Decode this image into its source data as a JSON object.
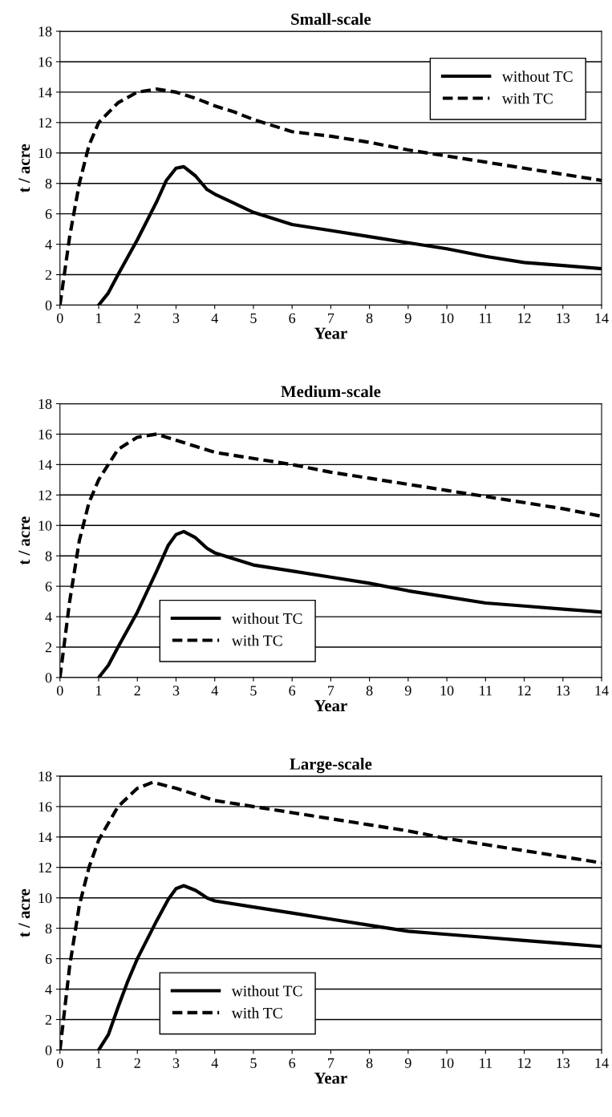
{
  "chart_data": [
    {
      "type": "line",
      "title": "Small-scale",
      "xlabel": "Year",
      "ylabel": "t / acre",
      "xlim": [
        0,
        14
      ],
      "ylim": [
        0,
        18
      ],
      "xticks": [
        0,
        1,
        2,
        3,
        4,
        5,
        6,
        7,
        8,
        9,
        10,
        11,
        12,
        13,
        14
      ],
      "yticks": [
        0,
        2,
        4,
        6,
        8,
        10,
        12,
        14,
        16,
        18
      ],
      "grid": "y",
      "legend": "top right",
      "marker": "none",
      "series": [
        {
          "name": "without TC",
          "color": "#000000",
          "line_style": "solid",
          "x": [
            1,
            1.25,
            1.5,
            2,
            2.5,
            2.75,
            3,
            3.2,
            3.5,
            3.8,
            4,
            5,
            6,
            7,
            8,
            9,
            10,
            11,
            12,
            13,
            14
          ],
          "values": [
            0,
            0.8,
            2,
            4.3,
            6.8,
            8.2,
            9.0,
            9.1,
            8.5,
            7.6,
            7.3,
            6.1,
            5.3,
            4.9,
            4.5,
            4.1,
            3.7,
            3.2,
            2.8,
            2.6,
            2.4
          ]
        },
        {
          "name": "with TC",
          "color": "#000000",
          "line_style": "dashed",
          "x": [
            0,
            0.25,
            0.5,
            0.75,
            1,
            1.5,
            2,
            2.5,
            3,
            3.5,
            4,
            4.5,
            5,
            5.5,
            6,
            7,
            8,
            9,
            10,
            11,
            12,
            13,
            14
          ],
          "values": [
            0,
            4.5,
            8,
            10.5,
            12,
            13.3,
            14,
            14.2,
            14,
            13.6,
            13.1,
            12.7,
            12.2,
            11.8,
            11.4,
            11.1,
            10.7,
            10.2,
            9.8,
            9.4,
            9.0,
            8.6,
            8.2
          ]
        }
      ]
    },
    {
      "type": "line",
      "title": "Medium-scale",
      "xlabel": "Year",
      "ylabel": "t / acre",
      "xlim": [
        0,
        14
      ],
      "ylim": [
        0,
        18
      ],
      "xticks": [
        0,
        1,
        2,
        3,
        4,
        5,
        6,
        7,
        8,
        9,
        10,
        11,
        12,
        13,
        14
      ],
      "yticks": [
        0,
        2,
        4,
        6,
        8,
        10,
        12,
        14,
        16,
        18
      ],
      "grid": "y",
      "legend": "bottom left",
      "marker": "none",
      "series": [
        {
          "name": "without TC",
          "color": "#000000",
          "line_style": "solid",
          "x": [
            1,
            1.25,
            1.5,
            2,
            2.5,
            2.8,
            3,
            3.2,
            3.5,
            3.8,
            4,
            5,
            6,
            7,
            8,
            9,
            10,
            11,
            12,
            13,
            14
          ],
          "values": [
            0,
            0.8,
            2,
            4.3,
            7,
            8.7,
            9.4,
            9.6,
            9.2,
            8.5,
            8.2,
            7.4,
            7.0,
            6.6,
            6.2,
            5.7,
            5.3,
            4.9,
            4.7,
            4.5,
            4.3
          ]
        },
        {
          "name": "with TC",
          "color": "#000000",
          "line_style": "dashed",
          "x": [
            0,
            0.25,
            0.5,
            0.75,
            1,
            1.5,
            2,
            2.5,
            3,
            3.5,
            4,
            5,
            6,
            7,
            8,
            9,
            10,
            11,
            12,
            13,
            14
          ],
          "values": [
            0,
            5,
            9,
            11.5,
            13,
            15,
            15.8,
            16,
            15.6,
            15.2,
            14.8,
            14.4,
            14,
            13.5,
            13.1,
            12.7,
            12.3,
            11.9,
            11.5,
            11.1,
            10.6
          ]
        }
      ]
    },
    {
      "type": "line",
      "title": "Large-scale",
      "xlabel": "Year",
      "ylabel": "t / acre",
      "xlim": [
        0,
        14
      ],
      "ylim": [
        0,
        18
      ],
      "xticks": [
        0,
        1,
        2,
        3,
        4,
        5,
        6,
        7,
        8,
        9,
        10,
        11,
        12,
        13,
        14
      ],
      "yticks": [
        0,
        2,
        4,
        6,
        8,
        10,
        12,
        14,
        16,
        18
      ],
      "grid": "y",
      "legend": "bottom left",
      "marker": "none",
      "series": [
        {
          "name": "without TC",
          "color": "#000000",
          "line_style": "solid",
          "x": [
            1,
            1.25,
            1.5,
            1.75,
            2,
            2.5,
            2.8,
            3,
            3.2,
            3.5,
            3.8,
            4,
            5,
            6,
            7,
            8,
            9,
            10,
            11,
            12,
            13,
            14
          ],
          "values": [
            0,
            1,
            2.8,
            4.5,
            6,
            8.5,
            9.9,
            10.6,
            10.8,
            10.5,
            10,
            9.8,
            9.4,
            9.0,
            8.6,
            8.2,
            7.8,
            7.6,
            7.4,
            7.2,
            7.0,
            6.8
          ]
        },
        {
          "name": "with TC",
          "color": "#000000",
          "line_style": "dashed",
          "x": [
            0,
            0.25,
            0.5,
            0.75,
            1,
            1.5,
            2,
            2.4,
            3,
            3.5,
            4,
            5,
            6,
            7,
            8,
            9,
            10,
            11,
            12,
            13,
            14
          ],
          "values": [
            0,
            5.5,
            9.5,
            12,
            13.8,
            16,
            17.2,
            17.6,
            17.2,
            16.8,
            16.4,
            16,
            15.6,
            15.2,
            14.8,
            14.4,
            13.9,
            13.5,
            13.1,
            12.7,
            12.3
          ]
        }
      ]
    }
  ]
}
